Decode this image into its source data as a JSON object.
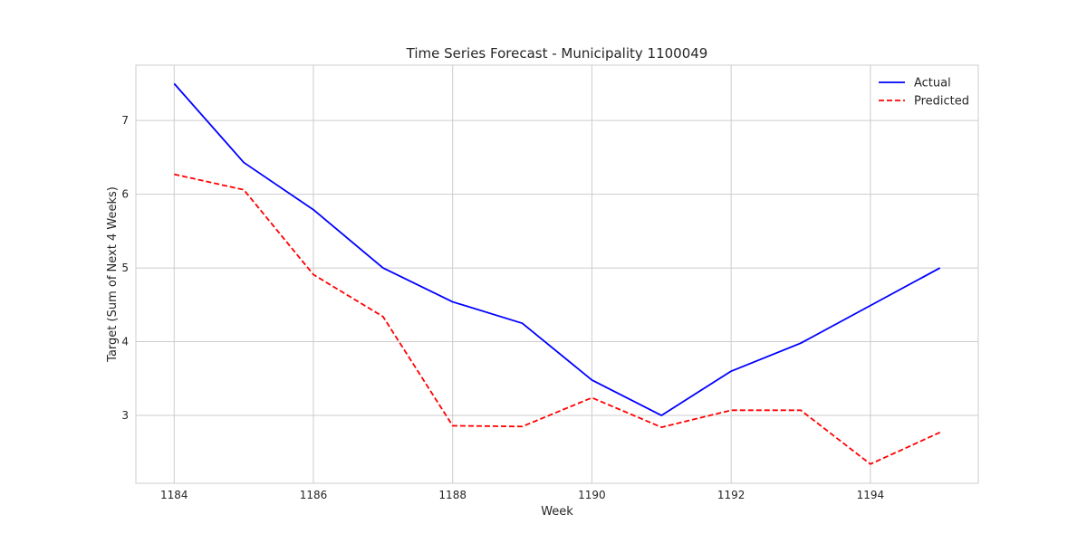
{
  "chart_data": {
    "type": "line",
    "title": "Time Series Forecast - Municipality 1100049",
    "xlabel": "Week",
    "ylabel": "Target (Sum of Next 4 Weeks)",
    "x": [
      1184,
      1185,
      1186,
      1187,
      1188,
      1189,
      1190,
      1191,
      1192,
      1193,
      1194,
      1195
    ],
    "xlim": [
      1183.45,
      1195.55
    ],
    "ylim": [
      2.08,
      7.75
    ],
    "xticks": [
      1184,
      1186,
      1188,
      1190,
      1192,
      1194
    ],
    "yticks": [
      3,
      4,
      5,
      6,
      7
    ],
    "grid": true,
    "legend_position": "top-right",
    "series": [
      {
        "name": "Actual",
        "color": "#0000ff",
        "dash": "solid",
        "values": [
          7.5,
          6.43,
          5.79,
          5.0,
          4.54,
          4.25,
          3.48,
          3.0,
          3.6,
          3.98,
          4.49,
          5.0
        ]
      },
      {
        "name": "Predicted",
        "color": "#ff0000",
        "dash": "dashed",
        "values": [
          6.27,
          6.06,
          4.91,
          4.34,
          2.86,
          2.85,
          3.24,
          2.84,
          3.07,
          3.07,
          2.34,
          2.77
        ]
      }
    ]
  }
}
